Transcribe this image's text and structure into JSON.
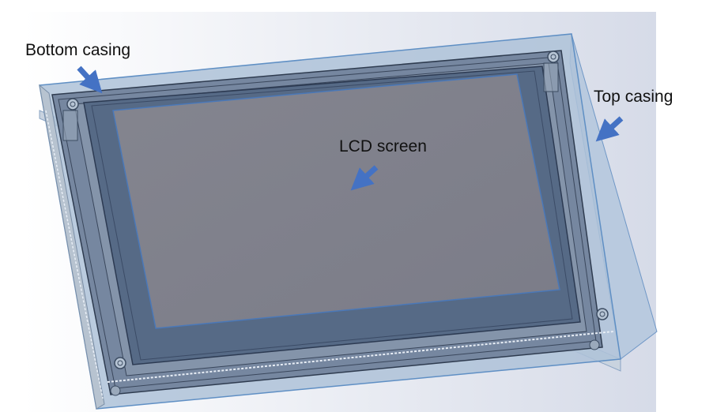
{
  "annotations": {
    "bottom_casing": "Bottom casing",
    "top_casing": "Top casing",
    "lcd_screen": "LCD screen"
  },
  "colors": {
    "background_gradient_start": "#ffffff",
    "background_gradient_end": "#d6dbe8",
    "top_casing_fill": "#a9bfd6",
    "top_casing_edge": "#5f8fc4",
    "bottom_casing_fill": "#6e7f96",
    "bezel_fill": "#52647e",
    "lcd_fill": "#7e7f8c",
    "arrow": "#4472c4",
    "screw": "#9aa8b8"
  },
  "icons": {
    "arrow": "arrow-icon",
    "screw": "screw-boss-icon"
  }
}
